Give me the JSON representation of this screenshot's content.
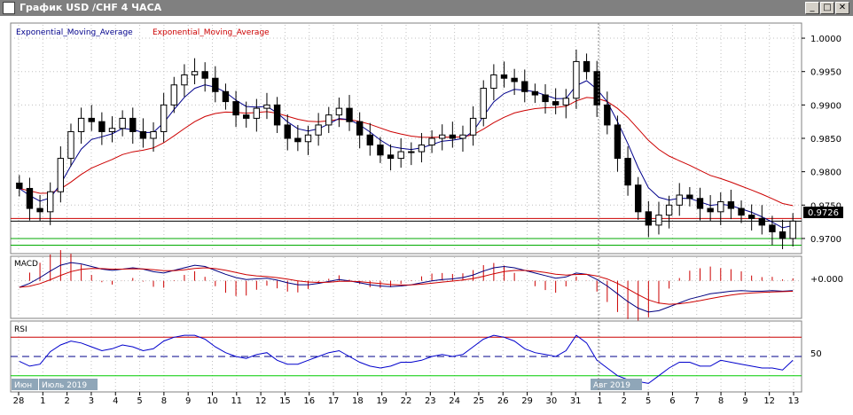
{
  "window": {
    "title": "График USD /CHF  4 ЧАСА",
    "minimize": "_",
    "restore": "□",
    "close": "✕",
    "icon": "chart-window-icon"
  },
  "price_panel": {
    "legend_blue": "Exponential_Moving_Average",
    "legend_red": "Exponential_Moving_Average",
    "y_ticks": [
      "1.0000",
      "0.9950",
      "0.9900",
      "0.9850",
      "0.9800",
      "0.9750",
      "0.9700"
    ],
    "current_price": "0.9726"
  },
  "macd_panel": {
    "label": "MACD",
    "tick": "+0.000"
  },
  "rsi_panel": {
    "label": "RSI",
    "tick": "50"
  },
  "month_labels": [
    "Июн",
    "Июль 2019",
    "Авг 2019"
  ],
  "x_ticks": [
    "28",
    "1",
    "2",
    "3",
    "4",
    "5",
    "8",
    "9",
    "10",
    "11",
    "12",
    "15",
    "16",
    "17",
    "18",
    "19",
    "22",
    "23",
    "24",
    "25",
    "26",
    "29",
    "30",
    "31",
    "1",
    "2",
    "5",
    "6",
    "7",
    "8",
    "9",
    "12",
    "13"
  ],
  "colors": {
    "ema_fast": "#00008b",
    "ema_slow": "#cc0000",
    "rsi_line": "#0000cc",
    "rsi_overbought": "#cc00cc",
    "rsi_oversold": "#00cc00",
    "price_tag_bg": "#000000"
  },
  "chart_data": [
    {
      "type": "candlestick",
      "title": "График USD /CHF  4 ЧАСА",
      "series": [
        {
          "name": "Exponential_Moving_Average",
          "color": "#00008b"
        },
        {
          "name": "Exponential_Moving_Average",
          "color": "#cc0000"
        }
      ],
      "close": [
        0.9775,
        0.9745,
        0.974,
        0.977,
        0.982,
        0.986,
        0.988,
        0.9875,
        0.986,
        0.9865,
        0.988,
        0.986,
        0.985,
        0.986,
        0.99,
        0.993,
        0.9945,
        0.995,
        0.994,
        0.992,
        0.9905,
        0.9885,
        0.988,
        0.9895,
        0.99,
        0.987,
        0.985,
        0.9845,
        0.9855,
        0.987,
        0.9885,
        0.9895,
        0.9875,
        0.9855,
        0.984,
        0.9825,
        0.982,
        0.983,
        0.983,
        0.984,
        0.985,
        0.9855,
        0.985,
        0.9855,
        0.988,
        0.9925,
        0.9945,
        0.994,
        0.9935,
        0.992,
        0.9915,
        0.9905,
        0.99,
        0.991,
        0.9965,
        0.995,
        0.99,
        0.987,
        0.982,
        0.978,
        0.974,
        0.972,
        0.9735,
        0.975,
        0.9765,
        0.976,
        0.9745,
        0.974,
        0.9755,
        0.9745,
        0.9735,
        0.973,
        0.972,
        0.971,
        0.97,
        0.9726
      ],
      "ylim": [
        0.968,
        1.002
      ],
      "y_ticks": [
        1.0,
        0.995,
        0.99,
        0.985,
        0.98,
        0.975,
        0.97
      ],
      "last_price": 0.9726,
      "horizontal_lines": [
        {
          "value": 0.973,
          "color": "#cc0000"
        },
        {
          "value": 0.9726,
          "color": "#000000"
        },
        {
          "value": 0.97,
          "color": "#00aa00"
        },
        {
          "value": 0.969,
          "color": "#00aa00"
        }
      ]
    },
    {
      "type": "line",
      "title": "MACD",
      "y_ticks": [
        "+0.000"
      ],
      "values": [
        -0.001,
        -0.0004,
        0.0005,
        0.0015,
        0.0024,
        0.0028,
        0.0026,
        0.0022,
        0.0018,
        0.0016,
        0.0018,
        0.002,
        0.0018,
        0.0014,
        0.0012,
        0.0016,
        0.002,
        0.0024,
        0.0022,
        0.0016,
        0.001,
        0.0005,
        0.0002,
        0.0003,
        0.0004,
        0.0001,
        -0.0003,
        -0.0006,
        -0.0006,
        -0.0004,
        -0.0001,
        0.0002,
        0.0,
        -0.0003,
        -0.0006,
        -0.0008,
        -0.0009,
        -0.0008,
        -0.0006,
        -0.0003,
        0.0,
        0.0002,
        0.0003,
        0.0005,
        0.0009,
        0.0015,
        0.002,
        0.0022,
        0.002,
        0.0016,
        0.0012,
        0.0008,
        0.0004,
        0.0006,
        0.0012,
        0.001,
        0.0002,
        -0.0008,
        -0.002,
        -0.0032,
        -0.0042,
        -0.0048,
        -0.0046,
        -0.004,
        -0.0034,
        -0.0028,
        -0.0024,
        -0.002,
        -0.0018,
        -0.0016,
        -0.0015,
        -0.0016,
        -0.0016,
        -0.0015,
        -0.0016,
        -0.0015
      ],
      "ylim": [
        -0.0055,
        0.0035
      ]
    },
    {
      "type": "line",
      "title": "RSI",
      "y_ticks": [
        50
      ],
      "values": [
        45,
        40,
        42,
        55,
        62,
        66,
        64,
        60,
        56,
        58,
        62,
        60,
        56,
        58,
        66,
        70,
        72,
        72,
        68,
        60,
        54,
        50,
        48,
        52,
        54,
        46,
        42,
        42,
        46,
        50,
        54,
        56,
        50,
        44,
        40,
        38,
        40,
        44,
        44,
        46,
        50,
        52,
        50,
        52,
        60,
        68,
        72,
        70,
        66,
        58,
        54,
        52,
        50,
        56,
        72,
        64,
        46,
        38,
        30,
        26,
        24,
        22,
        30,
        38,
        44,
        44,
        40,
        40,
        46,
        44,
        42,
        40,
        38,
        38,
        36,
        46
      ],
      "ylim": [
        15,
        85
      ],
      "levels": {
        "overbought": 70,
        "middle": 50,
        "oversold": 30
      }
    }
  ]
}
